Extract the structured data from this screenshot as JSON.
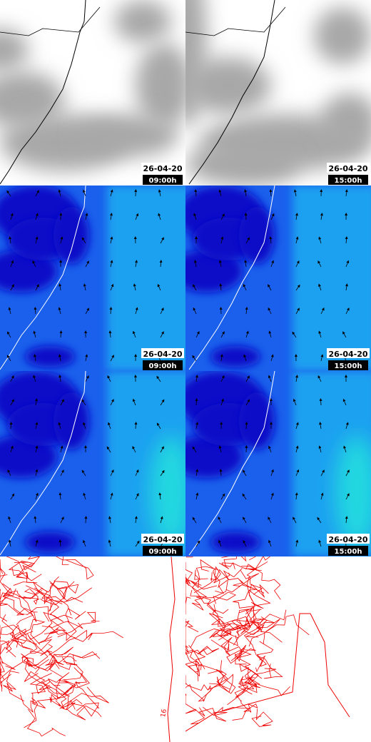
{
  "panels": [
    {
      "date": "26-04-20",
      "time": "09:00h"
    },
    {
      "date": "26-04-20",
      "time": "15:00h"
    },
    {
      "date": "26-04-20",
      "time": "09:00h"
    },
    {
      "date": "26-04-20",
      "time": "15:00h"
    },
    {
      "date": "26-04-20",
      "time": "09:00h"
    },
    {
      "date": "26-04-20",
      "time": "15:00h"
    },
    {},
    {}
  ],
  "contour_label": "16"
}
